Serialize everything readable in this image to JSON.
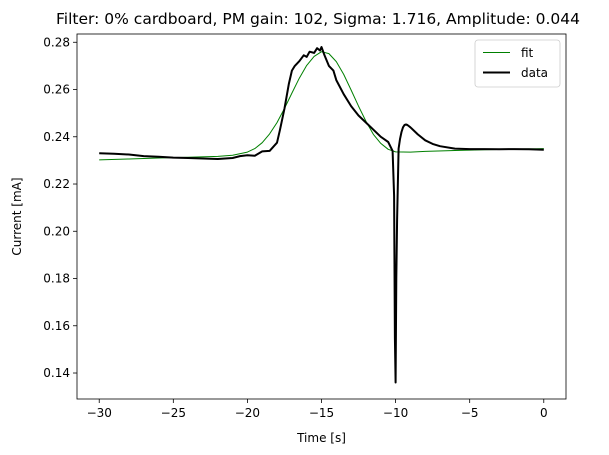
{
  "chart_data": {
    "type": "line",
    "title": "Filter: 0% cardboard, PM gain: 102, Sigma: 1.716, Amplitude: 0.044",
    "xlabel": "Time [s]",
    "ylabel": "Current [mA]",
    "xlim": [
      -31.5,
      1.5
    ],
    "ylim": [
      0.129,
      0.2835
    ],
    "xticks": [
      -30,
      -25,
      -20,
      -15,
      -10,
      -5,
      0
    ],
    "xtick_labels": [
      "−30",
      "−25",
      "−20",
      "−15",
      "−10",
      "−5",
      "0"
    ],
    "yticks": [
      0.14,
      0.16,
      0.18,
      0.2,
      0.22,
      0.24,
      0.26,
      0.28
    ],
    "ytick_labels": [
      "0.14",
      "0.16",
      "0.18",
      "0.20",
      "0.22",
      "0.24",
      "0.26",
      "0.28"
    ],
    "grid": false,
    "legend_position": "top-right",
    "series": [
      {
        "name": "fit",
        "color": "#008000",
        "x": [
          -30,
          -28,
          -26,
          -24,
          -22,
          -21,
          -20,
          -19.5,
          -19,
          -18.5,
          -18,
          -17.5,
          -17,
          -16.5,
          -16,
          -15.5,
          -15,
          -14.5,
          -14,
          -13.5,
          -13,
          -12.5,
          -12,
          -11.5,
          -11,
          -10.5,
          -10,
          -9,
          -8,
          -6,
          -4,
          -2,
          0
        ],
        "y": [
          0.2302,
          0.2306,
          0.231,
          0.2313,
          0.2317,
          0.2322,
          0.2335,
          0.235,
          0.2375,
          0.2412,
          0.246,
          0.252,
          0.2585,
          0.2648,
          0.2702,
          0.274,
          0.276,
          0.2752,
          0.2718,
          0.2664,
          0.2598,
          0.253,
          0.2465,
          0.241,
          0.2372,
          0.2347,
          0.2336,
          0.2335,
          0.2338,
          0.2342,
          0.2345,
          0.2348,
          0.235
        ]
      },
      {
        "name": "data",
        "color": "#000000",
        "x": [
          -30,
          -29,
          -28,
          -27,
          -26,
          -25,
          -24,
          -23,
          -22,
          -21,
          -20.5,
          -20,
          -19.5,
          -19,
          -18.5,
          -18,
          -17.8,
          -17.5,
          -17.2,
          -17,
          -16.8,
          -16.5,
          -16.2,
          -16,
          -15.8,
          -15.5,
          -15.3,
          -15.1,
          -15,
          -14.8,
          -14.5,
          -14.2,
          -14,
          -13.5,
          -13,
          -12.5,
          -12,
          -11.5,
          -11,
          -10.5,
          -10.2,
          -10.1,
          -10.05,
          -10,
          -9.95,
          -9.9,
          -9.8,
          -9.7,
          -9.6,
          -9.5,
          -9.4,
          -9.3,
          -9.2,
          -9,
          -8.5,
          -8,
          -7.5,
          -7,
          -6,
          -5,
          -4,
          -3,
          -2,
          -1,
          0
        ],
        "y": [
          0.233,
          0.2328,
          0.2325,
          0.2318,
          0.2315,
          0.2312,
          0.231,
          0.2308,
          0.2306,
          0.231,
          0.2318,
          0.2322,
          0.232,
          0.2338,
          0.234,
          0.2375,
          0.243,
          0.252,
          0.2625,
          0.268,
          0.27,
          0.272,
          0.2745,
          0.2738,
          0.276,
          0.2755,
          0.2775,
          0.2765,
          0.278,
          0.2745,
          0.27,
          0.268,
          0.264,
          0.258,
          0.253,
          0.249,
          0.246,
          0.243,
          0.24,
          0.2378,
          0.234,
          0.215,
          0.155,
          0.136,
          0.18,
          0.205,
          0.235,
          0.239,
          0.242,
          0.244,
          0.245,
          0.2452,
          0.245,
          0.244,
          0.241,
          0.2385,
          0.237,
          0.236,
          0.235,
          0.2348,
          0.2348,
          0.2347,
          0.2348,
          0.2347,
          0.2345
        ]
      }
    ]
  }
}
